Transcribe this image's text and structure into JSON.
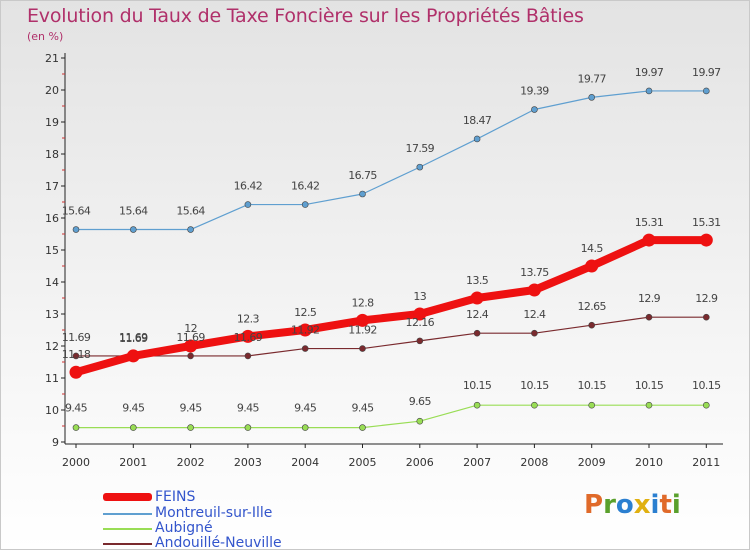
{
  "chart_data": {
    "type": "line",
    "title": "Evolution du Taux de Taxe Foncière sur les Propriétés Bâties",
    "subtitle": "(en %)",
    "x": [
      "2000",
      "2001",
      "2002",
      "2003",
      "2004",
      "2005",
      "2006",
      "2007",
      "2008",
      "2009",
      "2010",
      "2011"
    ],
    "ylim": [
      9,
      21
    ],
    "yticks": [
      "9",
      "10",
      "11",
      "12",
      "13",
      "14",
      "15",
      "16",
      "17",
      "18",
      "19",
      "20",
      "21"
    ],
    "grid": false,
    "legend_position": "bottom-left",
    "series": [
      {
        "name": "FEINS",
        "color": "#ee1111",
        "values": [
          11.18,
          11.69,
          12,
          12.3,
          12.5,
          12.8,
          13,
          13.5,
          13.75,
          14.5,
          15.31,
          15.31
        ],
        "labels": [
          "11.18",
          "11.69",
          "12",
          "12.3",
          "12.5",
          "12.8",
          "13",
          "13.5",
          "13.75",
          "14.5",
          "15.31",
          "15.31"
        ]
      },
      {
        "name": "Montreuil-sur-Ille",
        "color": "#5f9fd0",
        "values": [
          15.64,
          15.64,
          15.64,
          16.42,
          16.42,
          16.75,
          17.59,
          18.47,
          19.39,
          19.77,
          19.97,
          19.97
        ],
        "labels": [
          "15.64",
          "15.64",
          "15.64",
          "16.42",
          "16.42",
          "16.75",
          "17.59",
          "18.47",
          "19.39",
          "19.77",
          "19.97",
          "19.97"
        ]
      },
      {
        "name": "Aubigné",
        "color": "#99dd55",
        "values": [
          9.45,
          9.45,
          9.45,
          9.45,
          9.45,
          9.45,
          9.65,
          10.15,
          10.15,
          10.15,
          10.15,
          10.15
        ],
        "labels": [
          "9.45",
          "9.45",
          "9.45",
          "9.45",
          "9.45",
          "9.45",
          "9.65",
          "10.15",
          "10.15",
          "10.15",
          "10.15",
          "10.15"
        ]
      },
      {
        "name": "Andouillé-Neuville",
        "color": "#7a2a2e",
        "values": [
          11.69,
          11.69,
          11.69,
          11.69,
          11.92,
          11.92,
          12.16,
          12.4,
          12.4,
          12.65,
          12.9,
          12.9
        ],
        "labels": [
          "11.69",
          "11.69",
          "11.69",
          "11.69",
          "11.92",
          "11.92",
          "12.16",
          "12.4",
          "12.4",
          "12.65",
          "12.9",
          "12.9"
        ]
      }
    ]
  },
  "logo": {
    "letters": [
      "P",
      "r",
      "o",
      "x",
      "i",
      "t",
      "i"
    ],
    "colors": [
      "#e06a2a",
      "#5aa02c",
      "#2b7fd0",
      "#e0b010",
      "#2b7fd0",
      "#e06a2a",
      "#5aa02c"
    ]
  }
}
